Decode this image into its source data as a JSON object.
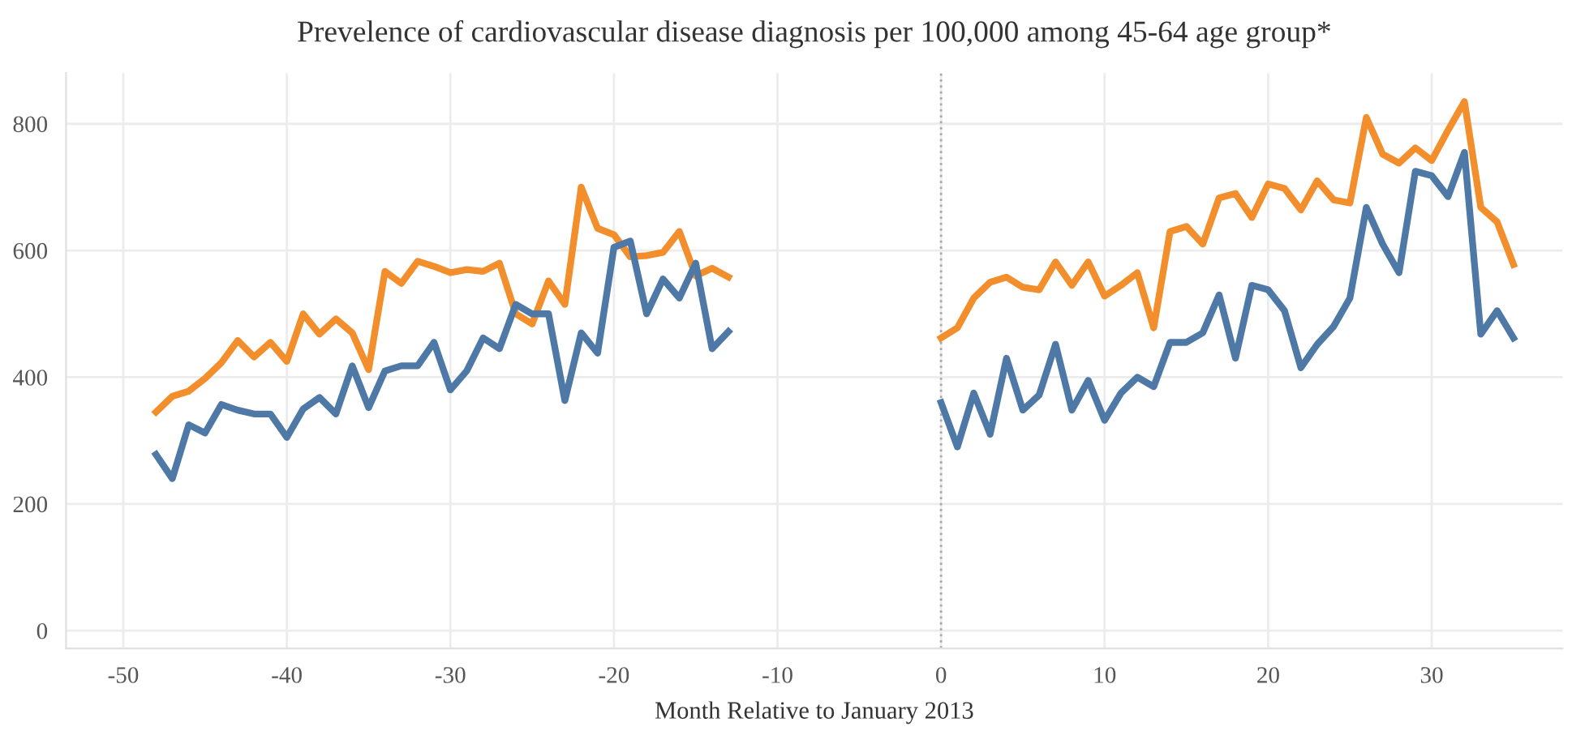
{
  "chart_data": {
    "type": "line",
    "title": "Prevelence of cardiovascular disease diagnosis per 100,000 among 45-64 age group*",
    "xlabel": "Month Relative to January 2013",
    "x": [
      -48,
      -47,
      -46,
      -45,
      -44,
      -43,
      -42,
      -41,
      -40,
      -39,
      -38,
      -37,
      -36,
      -35,
      -34,
      -33,
      -32,
      -31,
      -30,
      -29,
      -28,
      -27,
      -26,
      -25,
      -24,
      -23,
      -22,
      -21,
      -20,
      -19,
      -18,
      -17,
      -16,
      -15,
      -14,
      -13,
      -12,
      -11,
      -10,
      -9,
      -8,
      -7,
      -6,
      -5,
      -4,
      -3,
      -2,
      -1,
      0,
      1,
      2,
      3,
      4,
      5,
      6,
      7,
      8,
      9,
      10,
      11,
      12,
      13,
      14,
      15,
      16,
      17,
      18,
      19,
      20,
      21,
      22,
      23,
      24,
      25,
      26,
      27,
      28,
      29,
      30,
      31,
      32,
      33,
      34,
      35
    ],
    "series": [
      {
        "color": "#f28e2b",
        "values": [
          345,
          370,
          378,
          398,
          423,
          458,
          432,
          455,
          425,
          500,
          468,
          492,
          470,
          412,
          567,
          548,
          583,
          575,
          565,
          570,
          567,
          580,
          500,
          484,
          552,
          515,
          700,
          635,
          625,
          590,
          592,
          597,
          630,
          560,
          572,
          558,
          null,
          null,
          null,
          null,
          null,
          null,
          null,
          null,
          null,
          null,
          null,
          null,
          462,
          478,
          525,
          550,
          558,
          542,
          538,
          582,
          545,
          582,
          528,
          545,
          565,
          478,
          630,
          638,
          610,
          683,
          690,
          652,
          705,
          698,
          664,
          710,
          680,
          675,
          810,
          752,
          738,
          762,
          742,
          790,
          835,
          668,
          645,
          578
        ]
      },
      {
        "color": "#4e79a7",
        "values": [
          278,
          240,
          325,
          312,
          357,
          348,
          342,
          342,
          305,
          350,
          368,
          342,
          418,
          352,
          410,
          418,
          418,
          455,
          380,
          410,
          462,
          445,
          515,
          500,
          500,
          363,
          470,
          438,
          605,
          615,
          500,
          555,
          525,
          580,
          445,
          472,
          null,
          null,
          null,
          null,
          null,
          null,
          null,
          null,
          null,
          null,
          null,
          null,
          360,
          290,
          375,
          310,
          430,
          348,
          372,
          452,
          348,
          395,
          332,
          375,
          400,
          385,
          455,
          455,
          470,
          530,
          430,
          545,
          538,
          505,
          415,
          452,
          480,
          525,
          668,
          610,
          565,
          725,
          718,
          685,
          755,
          468,
          505,
          462
        ]
      }
    ],
    "xlim": [
      -53.5,
      38
    ],
    "xticks": [
      -50,
      -40,
      -30,
      -20,
      -10,
      0,
      10,
      20,
      30
    ],
    "ylim": [
      -28,
      880
    ],
    "yticks": [
      0,
      200,
      400,
      600,
      800
    ],
    "grid": true,
    "legend": false,
    "marker": "none",
    "line_style": "solid",
    "ref_lines": [
      {
        "axis": "x",
        "value": 0,
        "label": null,
        "color": "#aaaaaa",
        "line_style": "dotted"
      }
    ]
  }
}
